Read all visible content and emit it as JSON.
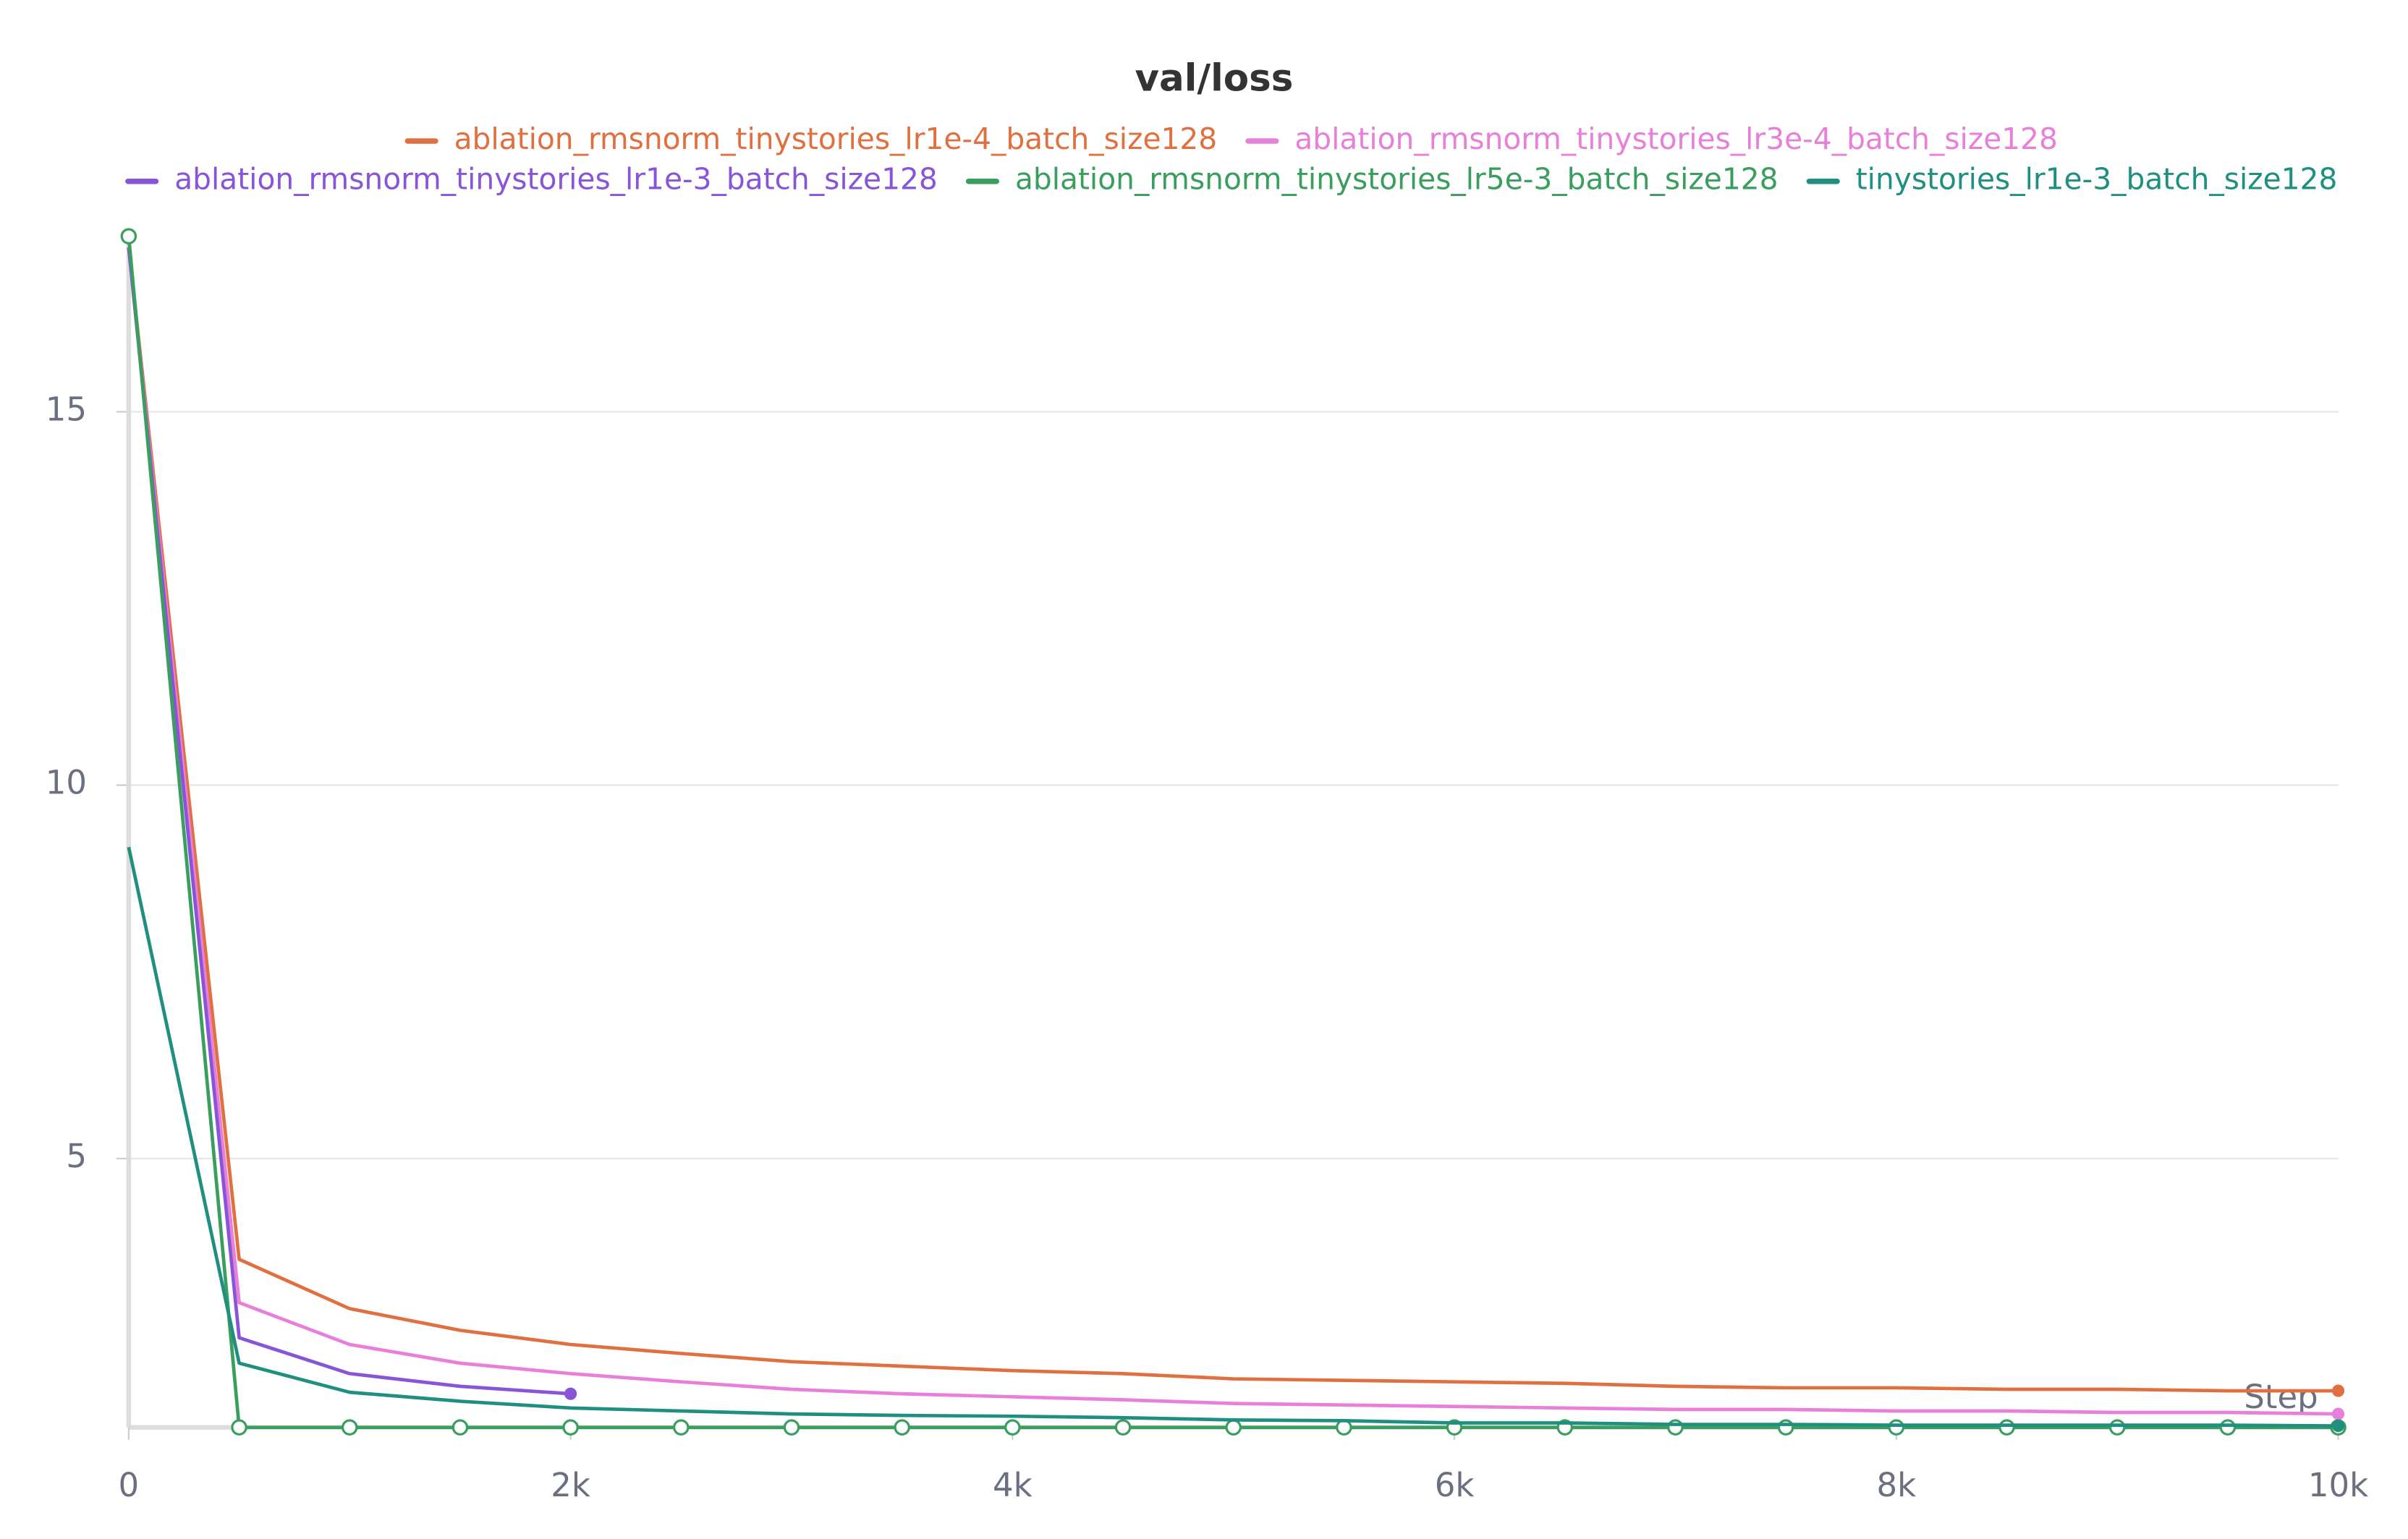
{
  "chart_data": {
    "type": "line",
    "title": "val/loss",
    "x_label": "Step",
    "x": [
      0,
      500,
      1000,
      1500,
      2000,
      2500,
      3000,
      3500,
      4000,
      4500,
      5000,
      5500,
      6000,
      6500,
      7000,
      7500,
      8000,
      8500,
      9000,
      9500,
      10000
    ],
    "series": [
      {
        "name": "ablation_rmsnorm_tinystories_lr1e-4_batch_size128",
        "color": "#e07040",
        "values": [
          17.2,
          3.65,
          2.99,
          2.7,
          2.51,
          2.39,
          2.28,
          2.22,
          2.16,
          2.12,
          2.05,
          2.03,
          2.01,
          1.99,
          1.95,
          1.93,
          1.93,
          1.91,
          1.91,
          1.89,
          1.89
        ]
      },
      {
        "name": "ablation_rmsnorm_tinystories_lr3e-4_batch_size128",
        "color": "#e87fd9",
        "values": [
          17.2,
          3.07,
          2.51,
          2.26,
          2.12,
          2.01,
          1.91,
          1.85,
          1.81,
          1.77,
          1.72,
          1.7,
          1.68,
          1.66,
          1.64,
          1.64,
          1.62,
          1.62,
          1.6,
          1.6,
          1.58
        ]
      },
      {
        "name": "ablation_rmsnorm_tinystories_lr1e-3_batch_size128",
        "color": "#8855d9",
        "values": [
          17.2,
          2.6,
          2.12,
          1.95,
          1.85,
          null,
          null,
          null,
          null,
          null,
          null,
          null,
          null,
          null,
          null,
          null,
          null,
          null,
          null,
          null,
          null
        ]
      },
      {
        "name": "ablation_rmsnorm_tinystories_lr5e-3_batch_size128",
        "color": "#3a9e5e",
        "values": [
          17.35,
          1.4,
          1.4,
          1.4,
          1.4,
          1.4,
          1.4,
          1.4,
          1.4,
          1.4,
          1.4,
          1.4,
          1.4,
          1.4,
          1.4,
          1.4,
          1.4,
          1.4,
          1.4,
          1.4,
          1.4
        ]
      },
      {
        "name": "tinystories_lr1e-3_batch_size128",
        "color": "#1f8f7f",
        "values": [
          9.17,
          2.26,
          1.87,
          1.75,
          1.66,
          1.62,
          1.58,
          1.56,
          1.55,
          1.53,
          1.5,
          1.49,
          1.46,
          1.46,
          1.44,
          1.44,
          1.43,
          1.43,
          1.43,
          1.43,
          1.42
        ]
      }
    ],
    "xlim": [
      0,
      10000
    ],
    "xticks": [
      0,
      {
        "value": 2000,
        "label": "2k"
      },
      {
        "value": 4000,
        "label": "4k"
      },
      {
        "value": 6000,
        "label": "6k"
      },
      {
        "value": 8000,
        "label": "8k"
      },
      {
        "value": 10000,
        "label": "10k"
      }
    ],
    "ylim": [
      1.4,
      17.4
    ],
    "yticks": [
      5,
      10,
      15
    ],
    "grid": true
  }
}
